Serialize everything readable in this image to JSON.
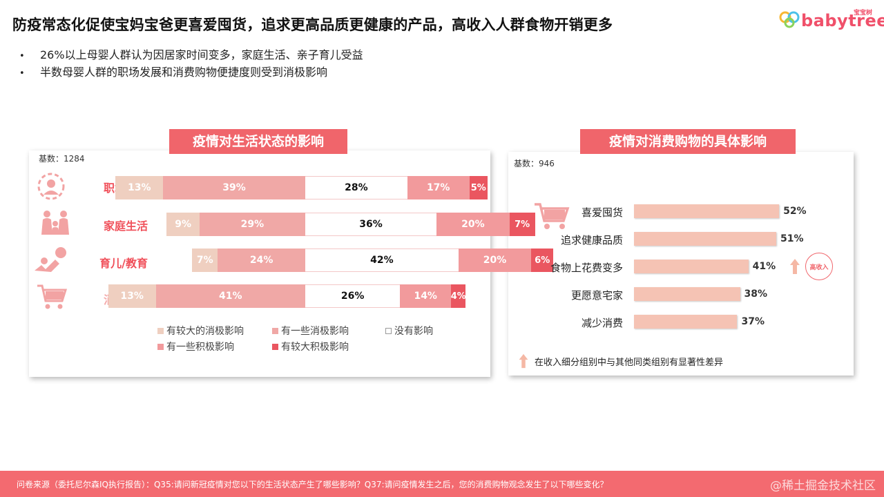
{
  "headline": "防疫常态化促使宝妈宝爸更喜爱囤货，追求更高品质更健康的产品，高收入人群食物开销更多",
  "logo": {
    "word": "babytree",
    "cn": "宝宝树",
    "brand_color": "#f0506a"
  },
  "bullets": [
    "26%以上母婴人群认为因居家时间变多，家庭生活、亲子育儿受益",
    "半数母婴人群的职场发展和消费购物便捷度则受到消极影响"
  ],
  "colors": {
    "accent": "#f0656b",
    "seg": [
      "#efcfc0",
      "#f0a8a6",
      "#ffffff",
      "#f29a9c",
      "#ea5660"
    ],
    "hbar": "#f5c3b4"
  },
  "chart_data": [
    {
      "type": "bar",
      "orientation": "horizontal-stacked",
      "title": "疫情对生活状态的影响",
      "base_label": "基数：1284",
      "categories": [
        "职场发展",
        "家庭生活",
        "育儿/教育",
        "消费购物"
      ],
      "category_icons": [
        "career-icon",
        "family-icon",
        "parenting-icon",
        "shopping-cart-icon"
      ],
      "category_colors": [
        "#f0505a",
        "#f0505a",
        "#f0505a",
        "#f4a9a9"
      ],
      "series": [
        {
          "name": "有较大的消极影响",
          "values": [
            13,
            9,
            7,
            13
          ]
        },
        {
          "name": "有一些消极影响",
          "values": [
            39,
            29,
            24,
            41
          ]
        },
        {
          "name": "没有影响",
          "values": [
            28,
            36,
            42,
            26
          ]
        },
        {
          "name": "有一些积极影响",
          "values": [
            17,
            20,
            20,
            14
          ]
        },
        {
          "name": "有较大积极影响",
          "values": [
            5,
            7,
            6,
            4
          ]
        }
      ],
      "legend_position": "bottom"
    },
    {
      "type": "bar",
      "orientation": "horizontal",
      "title": "疫情对消费购物的具体影响",
      "base_label": "基数：946",
      "categories": [
        "喜爱囤货",
        "追求健康品质",
        "食物上花费变多",
        "更愿意宅家",
        "减少消费"
      ],
      "values": [
        52,
        51,
        41,
        38,
        37
      ],
      "value_labels": [
        "52%",
        "51%",
        "41%",
        "38%",
        "37%"
      ],
      "xlim": [
        0,
        55
      ],
      "highlight": {
        "category": "食物上花费变多",
        "badge": "高收入"
      },
      "note": "在收入细分组别中与其他同类组别有显著性差异"
    }
  ],
  "footer": {
    "text": "问卷来源（委托尼尔森IQ执行报告）：Q35:请问新冠疫情对您以下的生活状态产生了哪些影响？Q37:请问疫情发生之后，您的消费购物观念发生了以下哪些变化？",
    "watermark": "@稀土掘金技术社区"
  }
}
